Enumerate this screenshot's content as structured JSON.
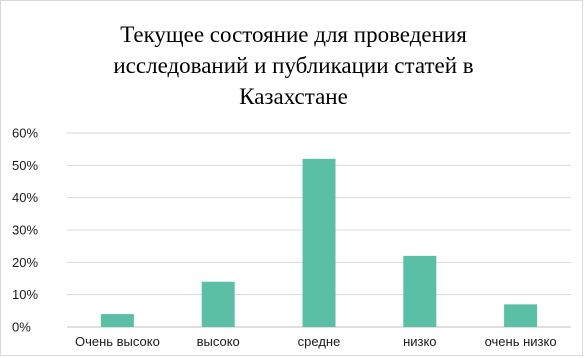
{
  "chart_data": {
    "type": "bar",
    "title_lines": [
      "Текущее состояние для проведения",
      "исследований и публикации статей в",
      "Казахстане"
    ],
    "categories": [
      "Очень высоко",
      "высоко",
      "средне",
      "низко",
      "очень низко"
    ],
    "values": [
      0.04,
      0.14,
      0.52,
      0.22,
      0.07
    ],
    "y_ticks": [
      "0%",
      "10%",
      "20%",
      "30%",
      "40%",
      "50%",
      "60%"
    ],
    "ylim": [
      0,
      0.6
    ],
    "grid": true,
    "legend": "none",
    "colors": {
      "bar": "#5bbfa5",
      "grid": "#d9d9d9",
      "axis": "#bfbfbf"
    }
  }
}
